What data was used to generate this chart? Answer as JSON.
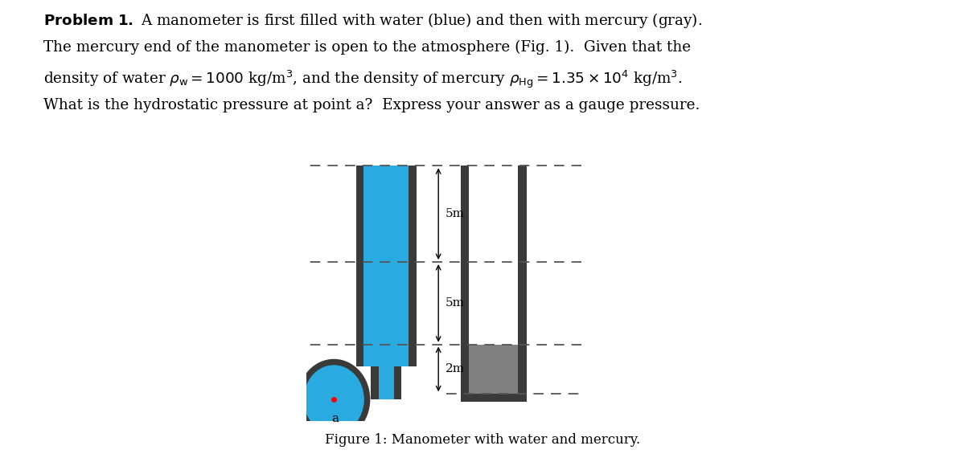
{
  "fig_width": 12.0,
  "fig_height": 5.7,
  "bg_color": "#ffffff",
  "text_color": "#000000",
  "water_color": "#29ABE2",
  "mercury_color": "#808080",
  "wall_color": "#3a3a3a",
  "dashed_color": "#555555",
  "caption": "Figure 1: Manometer with water and mercury.",
  "dim_5m_top": "5m",
  "dim_5m_bot": "5m",
  "dim_2m": "2m",
  "label_a": "a",
  "text_line1": "$\\mathbf{Problem\\ 1.}$ A manometer is first filled with water (blue) and then with mercury (gray).",
  "text_line2": "The mercury end of the manometer is open to the atmosphere (Fig. 1).  Given that the",
  "text_line3": "density of water $\\rho_\\mathrm{w} = 1000$ kg/m$^3$, and the density of mercury $\\rho_\\mathrm{Hg} = 1.35 \\times 10^4$ kg/m$^3$.",
  "text_line4": "What is the hydrostatic pressure at point a?  Express your answer as a gauge pressure."
}
